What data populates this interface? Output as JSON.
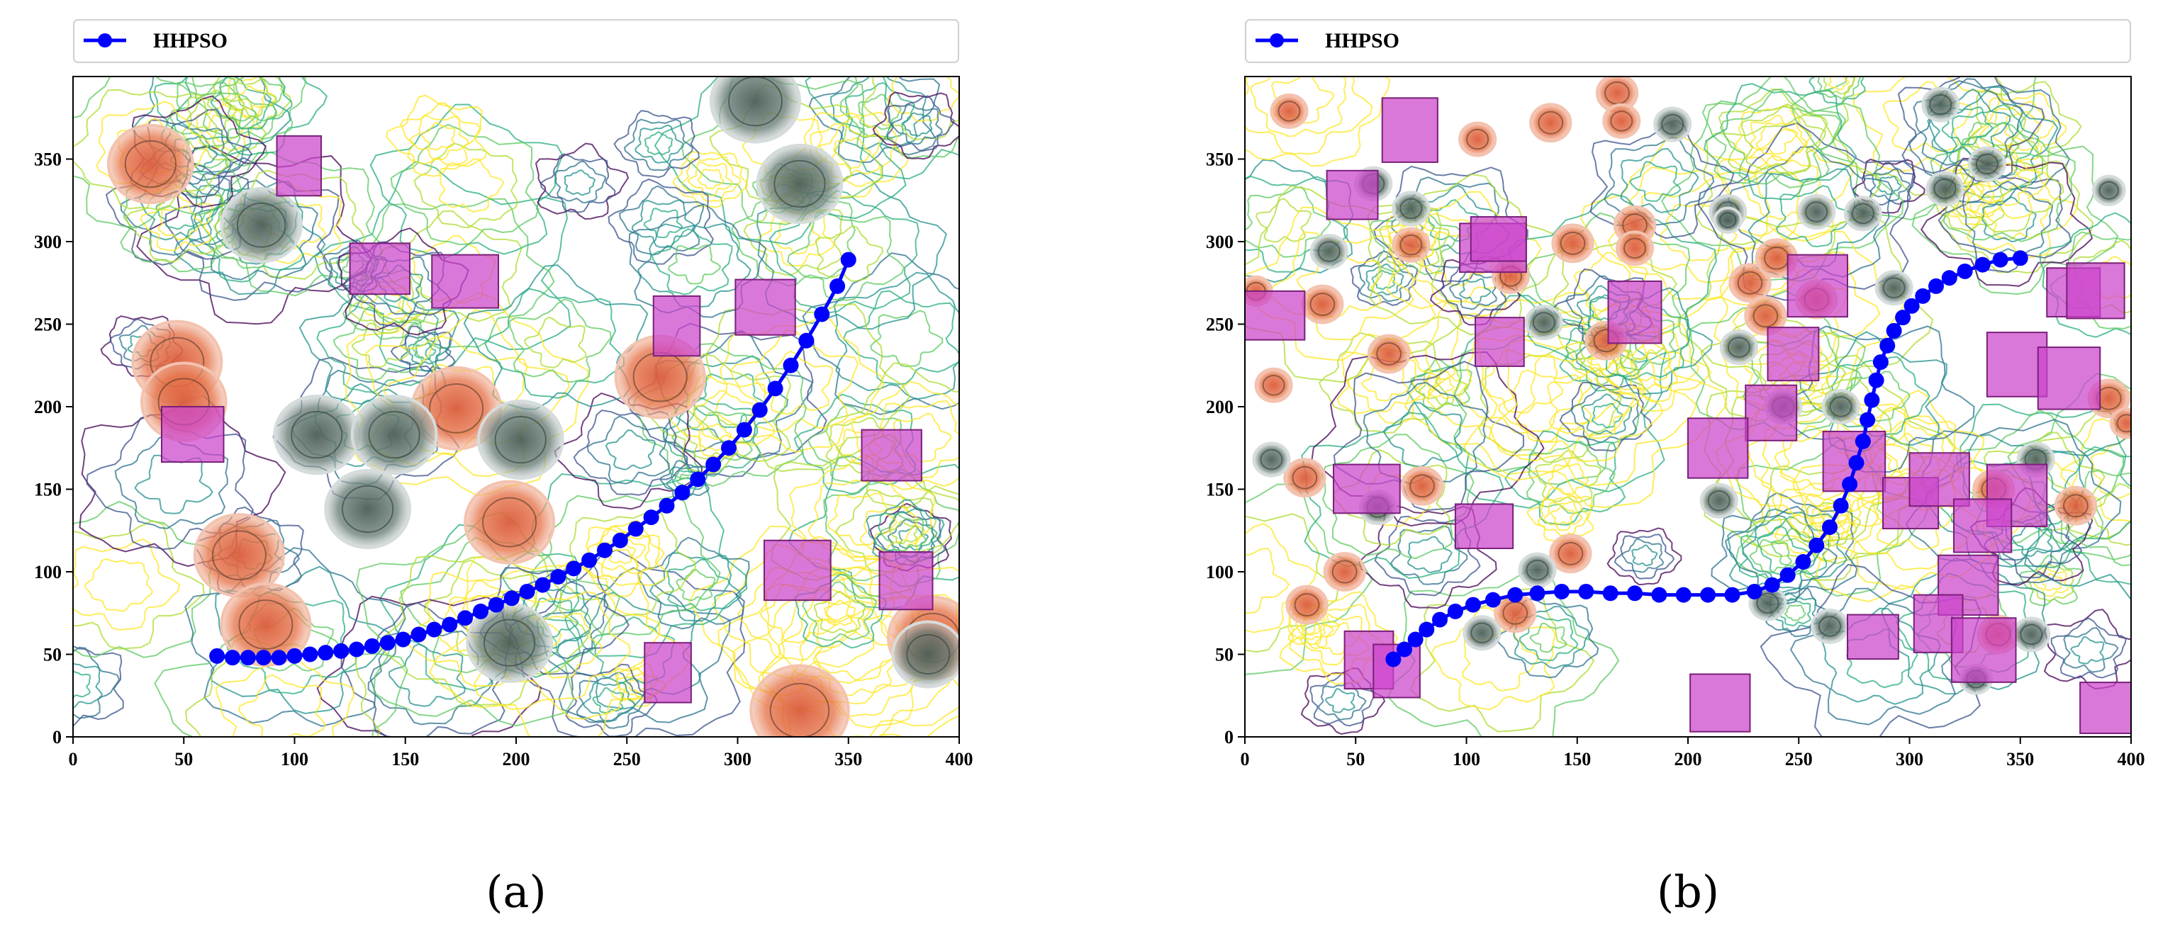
{
  "chart_data": [
    {
      "type": "line",
      "panel_label": "(a)",
      "legend": {
        "label": "HHPSO",
        "placement": "top"
      },
      "xlim": [
        0,
        400
      ],
      "ylim": [
        0,
        400
      ],
      "xticks": [
        0,
        50,
        100,
        150,
        200,
        250,
        300,
        350,
        400
      ],
      "yticks": [
        0,
        50,
        100,
        150,
        200,
        250,
        300,
        350
      ],
      "background": "terrain contour map",
      "colors": {
        "path": "#0000ff",
        "box": "#cc44cc",
        "threat_red": "#e4573a",
        "threat_gray": "#5a6e6a"
      },
      "series": [
        {
          "name": "HHPSO",
          "x": [
            65,
            72,
            79,
            86,
            93,
            100,
            107,
            114,
            121,
            128,
            135,
            142,
            149,
            156,
            163,
            170,
            177,
            184,
            191,
            198,
            205,
            212,
            219,
            226,
            233,
            240,
            247,
            254,
            261,
            268,
            275,
            282,
            289,
            296,
            303,
            310,
            317,
            324,
            331,
            338,
            345,
            350
          ],
          "y": [
            49,
            48,
            48,
            48,
            48,
            49,
            50,
            51,
            52,
            53,
            55,
            57,
            59,
            62,
            65,
            68,
            72,
            76,
            80,
            84,
            88,
            92,
            97,
            102,
            107,
            113,
            119,
            126,
            133,
            140,
            148,
            156,
            165,
            175,
            186,
            198,
            211,
            225,
            240,
            256,
            273,
            289
          ]
        }
      ],
      "threats_red": [
        [
          35,
          347,
          19
        ],
        [
          47,
          227,
          20
        ],
        [
          50,
          203,
          19
        ],
        [
          75,
          110,
          20
        ],
        [
          87,
          68,
          20
        ],
        [
          173,
          199,
          20
        ],
        [
          197,
          130,
          20
        ],
        [
          265,
          218,
          20
        ],
        [
          328,
          16,
          22
        ],
        [
          388,
          60,
          20
        ]
      ],
      "threats_gray": [
        [
          85,
          310,
          18
        ],
        [
          110,
          183,
          19
        ],
        [
          145,
          183,
          19
        ],
        [
          133,
          138,
          19
        ],
        [
          202,
          180,
          19
        ],
        [
          197,
          57,
          19
        ],
        [
          308,
          385,
          20
        ],
        [
          328,
          335,
          19
        ],
        [
          386,
          50,
          16
        ]
      ],
      "obstacles": [
        [
          40,
          175,
          28,
          25
        ],
        [
          92,
          337,
          20,
          27
        ],
        [
          125,
          276,
          27,
          23
        ],
        [
          162,
          268,
          30,
          24
        ],
        [
          262,
          240,
          21,
          27
        ],
        [
          299,
          252,
          27,
          25
        ],
        [
          356,
          163,
          27,
          23
        ],
        [
          312,
          92,
          30,
          27
        ],
        [
          364,
          86,
          24,
          26
        ],
        [
          258,
          30,
          21,
          27
        ]
      ]
    },
    {
      "type": "line",
      "panel_label": "(b)",
      "legend": {
        "label": "HHPSO",
        "placement": "top"
      },
      "xlim": [
        0,
        400
      ],
      "ylim": [
        0,
        400
      ],
      "xticks": [
        0,
        50,
        100,
        150,
        200,
        250,
        300,
        350,
        400
      ],
      "yticks": [
        0,
        50,
        100,
        150,
        200,
        250,
        300,
        350
      ],
      "background": "terrain contour map",
      "colors": {
        "path": "#0000ff",
        "box": "#cc44cc",
        "threat_red": "#e4573a",
        "threat_gray": "#5a6e6a"
      },
      "series": [
        {
          "name": "HHPSO",
          "x": [
            67,
            72,
            77,
            82,
            88,
            95,
            103,
            112,
            122,
            132,
            143,
            154,
            165,
            176,
            187,
            198,
            209,
            220,
            230,
            238,
            245,
            252,
            258,
            264,
            269,
            273,
            276,
            279,
            281,
            283,
            285,
            287,
            290,
            293,
            297,
            301,
            306,
            312,
            318,
            325,
            333,
            341,
            350
          ],
          "y": [
            47,
            53,
            59,
            65,
            71,
            76,
            80,
            83,
            86,
            87,
            88,
            88,
            87,
            87,
            86,
            86,
            86,
            86,
            88,
            92,
            98,
            106,
            116,
            127,
            140,
            153,
            166,
            179,
            192,
            204,
            216,
            227,
            237,
            246,
            254,
            261,
            267,
            273,
            278,
            282,
            286,
            289,
            290
          ]
        }
      ],
      "threats_red": [
        [
          20,
          379,
          8
        ],
        [
          105,
          362,
          8
        ],
        [
          138,
          372,
          9
        ],
        [
          168,
          390,
          9
        ],
        [
          148,
          299,
          9
        ],
        [
          120,
          279,
          8
        ],
        [
          170,
          373,
          8
        ],
        [
          176,
          310,
          9
        ],
        [
          176,
          296,
          8
        ],
        [
          75,
          298,
          8
        ],
        [
          35,
          262,
          9
        ],
        [
          5,
          270,
          7
        ],
        [
          65,
          232,
          9
        ],
        [
          13,
          213,
          8
        ],
        [
          163,
          240,
          9
        ],
        [
          228,
          275,
          9
        ],
        [
          235,
          255,
          9
        ],
        [
          240,
          290,
          9
        ],
        [
          258,
          265,
          9
        ],
        [
          27,
          157,
          9
        ],
        [
          80,
          152,
          9
        ],
        [
          45,
          100,
          9
        ],
        [
          28,
          80,
          9
        ],
        [
          122,
          75,
          9
        ],
        [
          147,
          111,
          9
        ],
        [
          338,
          150,
          9
        ],
        [
          375,
          140,
          9
        ],
        [
          340,
          62,
          9
        ],
        [
          390,
          205,
          9
        ],
        [
          398,
          190,
          7
        ]
      ],
      "threats_gray": [
        [
          193,
          371,
          8
        ],
        [
          314,
          383,
          8
        ],
        [
          335,
          347,
          8
        ],
        [
          316,
          332,
          8
        ],
        [
          390,
          331,
          7
        ],
        [
          75,
          320,
          8
        ],
        [
          38,
          294,
          8
        ],
        [
          58,
          335,
          8
        ],
        [
          218,
          318,
          8
        ],
        [
          258,
          318,
          8
        ],
        [
          279,
          317,
          8
        ],
        [
          293,
          272,
          8
        ],
        [
          135,
          251,
          8
        ],
        [
          223,
          236,
          8
        ],
        [
          243,
          200,
          8
        ],
        [
          269,
          200,
          8
        ],
        [
          12,
          168,
          8
        ],
        [
          60,
          139,
          8
        ],
        [
          214,
          143,
          8
        ],
        [
          357,
          168,
          8
        ],
        [
          132,
          101,
          8
        ],
        [
          236,
          81,
          8
        ],
        [
          264,
          67,
          8
        ],
        [
          107,
          63,
          8
        ],
        [
          355,
          62,
          8
        ],
        [
          330,
          35,
          7
        ],
        [
          218,
          313,
          6
        ]
      ],
      "obstacles": [
        [
          62,
          358,
          25,
          29
        ],
        [
          37,
          321,
          23,
          22
        ],
        [
          0,
          248,
          27,
          22
        ],
        [
          97,
          289,
          30,
          22
        ],
        [
          102,
          295,
          25,
          20
        ],
        [
          104,
          232,
          22,
          22
        ],
        [
          164,
          248,
          24,
          28
        ],
        [
          245,
          264,
          27,
          28
        ],
        [
          236,
          224,
          23,
          24
        ],
        [
          226,
          188,
          23,
          25
        ],
        [
          200,
          166,
          27,
          27
        ],
        [
          261,
          158,
          28,
          27
        ],
        [
          40,
          143,
          30,
          22
        ],
        [
          95,
          121,
          26,
          20
        ],
        [
          288,
          134,
          25,
          23
        ],
        [
          300,
          148,
          27,
          24
        ],
        [
          335,
          137,
          27,
          28
        ],
        [
          320,
          120,
          26,
          24
        ],
        [
          335,
          216,
          27,
          29
        ],
        [
          358,
          208,
          28,
          28
        ],
        [
          362,
          262,
          24,
          22
        ],
        [
          371,
          262,
          26,
          25
        ],
        [
          313,
          83,
          27,
          27
        ],
        [
          302,
          60,
          22,
          26
        ],
        [
          319,
          43,
          29,
          29
        ],
        [
          272,
          54,
          23,
          20
        ],
        [
          45,
          38,
          22,
          26
        ],
        [
          58,
          32,
          21,
          24
        ],
        [
          201,
          12,
          27,
          26
        ],
        [
          377,
          10,
          23,
          23
        ]
      ]
    }
  ]
}
